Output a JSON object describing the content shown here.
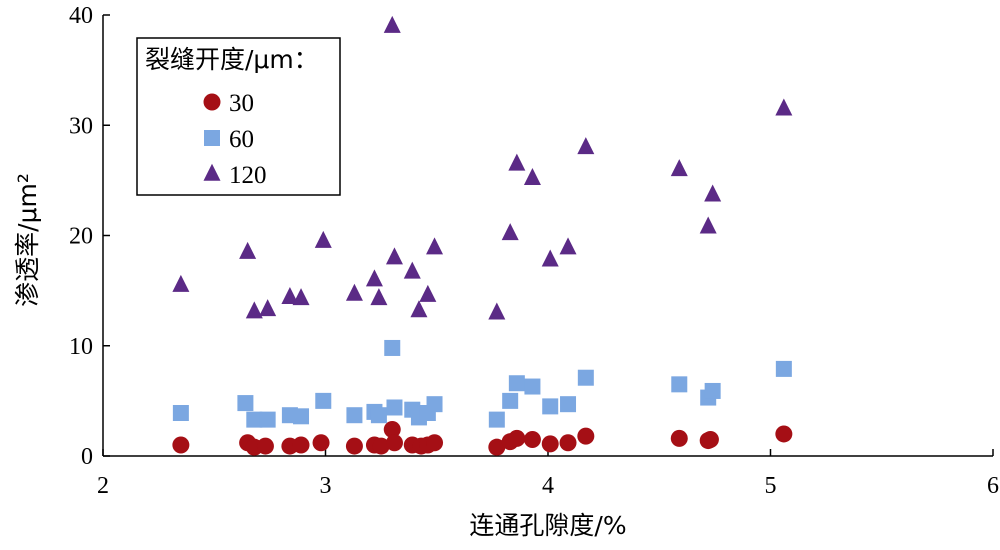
{
  "chart_data": {
    "type": "scatter",
    "xlabel": "连通孔隙度/%",
    "ylabel": "渗透率/μm²",
    "xlim": [
      2,
      6
    ],
    "ylim": [
      0,
      40
    ],
    "xticks": [
      2,
      3,
      4,
      5,
      6
    ],
    "yticks": [
      0,
      10,
      20,
      30,
      40
    ],
    "grid": false,
    "legend": {
      "title": "裂缝开度/μm：",
      "placement": "top-left"
    },
    "series": [
      {
        "name": "30",
        "marker": "circle",
        "color": "#A50F15",
        "points": [
          [
            2.35,
            1.0
          ],
          [
            2.65,
            1.2
          ],
          [
            2.68,
            0.8
          ],
          [
            2.73,
            0.9
          ],
          [
            2.84,
            0.9
          ],
          [
            2.89,
            1.0
          ],
          [
            2.98,
            1.2
          ],
          [
            3.13,
            0.9
          ],
          [
            3.22,
            1.0
          ],
          [
            3.25,
            0.9
          ],
          [
            3.3,
            2.4
          ],
          [
            3.31,
            1.2
          ],
          [
            3.39,
            1.0
          ],
          [
            3.43,
            0.9
          ],
          [
            3.46,
            1.0
          ],
          [
            3.49,
            1.2
          ],
          [
            3.77,
            0.8
          ],
          [
            3.83,
            1.3
          ],
          [
            3.86,
            1.6
          ],
          [
            3.93,
            1.5
          ],
          [
            4.01,
            1.1
          ],
          [
            4.09,
            1.2
          ],
          [
            4.17,
            1.8
          ],
          [
            4.59,
            1.6
          ],
          [
            4.72,
            1.4
          ],
          [
            4.73,
            1.5
          ],
          [
            5.06,
            2.0
          ]
        ]
      },
      {
        "name": "60",
        "marker": "square",
        "color": "#7BA7E1",
        "points": [
          [
            2.35,
            3.9
          ],
          [
            2.64,
            4.8
          ],
          [
            2.68,
            3.3
          ],
          [
            2.74,
            3.3
          ],
          [
            2.84,
            3.7
          ],
          [
            2.89,
            3.6
          ],
          [
            2.99,
            5.0
          ],
          [
            3.13,
            3.7
          ],
          [
            3.22,
            4.0
          ],
          [
            3.24,
            3.7
          ],
          [
            3.3,
            9.8
          ],
          [
            3.31,
            4.4
          ],
          [
            3.39,
            4.2
          ],
          [
            3.42,
            3.5
          ],
          [
            3.46,
            3.9
          ],
          [
            3.49,
            4.7
          ],
          [
            3.77,
            3.3
          ],
          [
            3.83,
            5.0
          ],
          [
            3.86,
            6.6
          ],
          [
            3.93,
            6.3
          ],
          [
            4.01,
            4.5
          ],
          [
            4.09,
            4.7
          ],
          [
            4.17,
            7.1
          ],
          [
            4.59,
            6.5
          ],
          [
            4.72,
            5.3
          ],
          [
            4.74,
            5.9
          ],
          [
            5.06,
            7.9
          ]
        ]
      },
      {
        "name": "120",
        "marker": "triangle",
        "color": "#5B2A86",
        "points": [
          [
            2.35,
            15.5
          ],
          [
            2.65,
            18.5
          ],
          [
            2.68,
            13.1
          ],
          [
            2.74,
            13.3
          ],
          [
            2.84,
            14.4
          ],
          [
            2.89,
            14.3
          ],
          [
            2.99,
            19.5
          ],
          [
            3.13,
            14.7
          ],
          [
            3.22,
            16.0
          ],
          [
            3.24,
            14.3
          ],
          [
            3.3,
            39.0
          ],
          [
            3.31,
            18.0
          ],
          [
            3.39,
            16.7
          ],
          [
            3.42,
            13.2
          ],
          [
            3.46,
            14.6
          ],
          [
            3.49,
            18.9
          ],
          [
            3.77,
            13.0
          ],
          [
            3.83,
            20.2
          ],
          [
            3.86,
            26.5
          ],
          [
            3.93,
            25.2
          ],
          [
            4.01,
            17.8
          ],
          [
            4.09,
            18.9
          ],
          [
            4.17,
            28.0
          ],
          [
            4.59,
            26.0
          ],
          [
            4.72,
            20.8
          ],
          [
            4.74,
            23.7
          ],
          [
            5.06,
            31.5
          ]
        ]
      }
    ]
  }
}
